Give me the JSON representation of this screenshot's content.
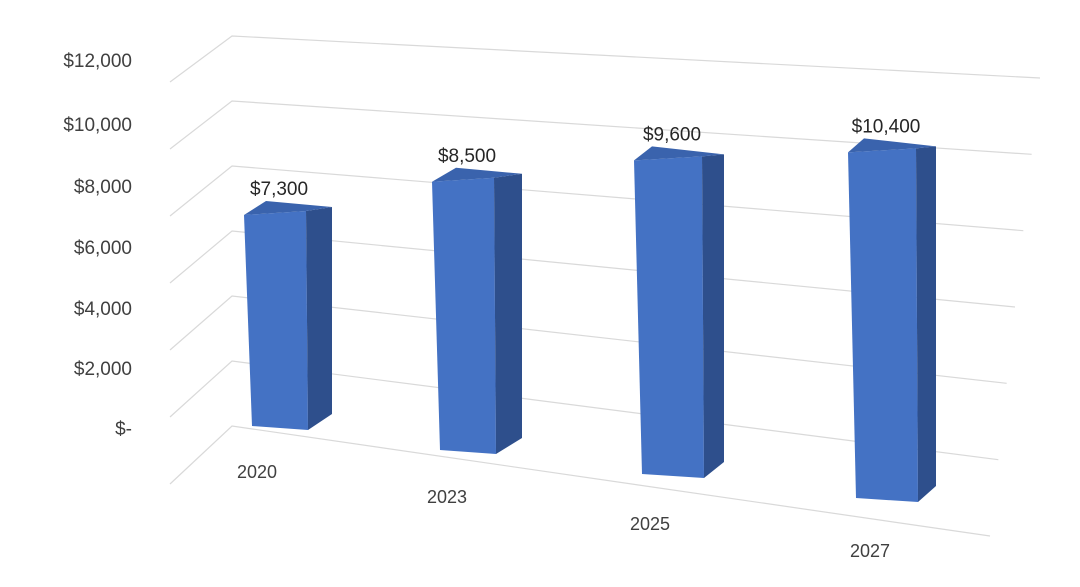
{
  "chart_data": {
    "type": "bar",
    "style": "3d-perspective-column",
    "title": "",
    "xlabel": "",
    "ylabel": "",
    "categories": [
      "2020",
      "2023",
      "2025",
      "2027"
    ],
    "values": [
      7300,
      8500,
      9600,
      10400
    ],
    "data_labels": [
      "$7,300",
      "$8,500",
      "$9,600",
      "$10,400"
    ],
    "y_ticks": [
      0,
      2000,
      4000,
      6000,
      8000,
      10000,
      12000
    ],
    "y_tick_labels": [
      "$-",
      "$2,000",
      "$4,000",
      "$6,000",
      "$8,000",
      "$10,000",
      "$12,000"
    ],
    "ylim": [
      0,
      12000
    ],
    "grid": true,
    "legend": "none",
    "colors": {
      "bar_front": "#4472c4",
      "bar_side": "#2e4f8c",
      "bar_top": "#3a63ad",
      "gridline": "#d9d9d9",
      "text": "#404040"
    }
  }
}
